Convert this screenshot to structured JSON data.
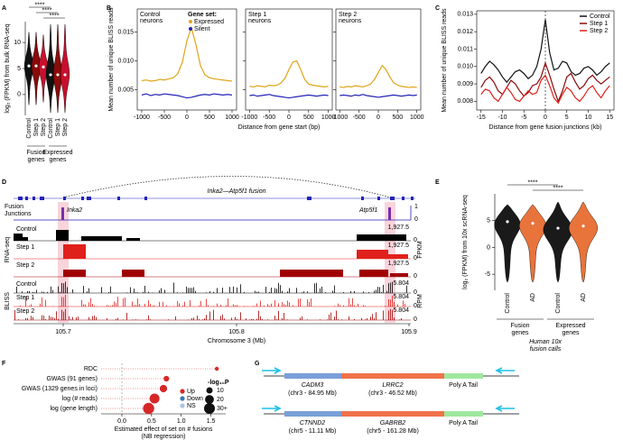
{
  "panel_labels": [
    "A",
    "B",
    "C",
    "D",
    "E",
    "F",
    "G"
  ],
  "chart_data": [
    {
      "type": "violin",
      "ylabel": "log₂ (FPKM) from bulk RNA-seq",
      "categories": [
        "Control",
        "Step 1",
        "Step 2",
        "Control",
        "Step 1",
        "Step 2"
      ],
      "groups": [
        [
          "Fusion",
          "genes"
        ],
        [
          "Expressed",
          "genes"
        ]
      ],
      "medians": [
        5.5,
        5.5,
        5.3,
        3.8,
        3.8,
        3.8
      ],
      "mins": [
        -2,
        -2,
        -1.5,
        -3.5,
        -3.5,
        -3.5
      ],
      "maxs": [
        12,
        12,
        11.5,
        13.5,
        13.5,
        13.5
      ],
      "colors": [
        "#111111",
        "#8b0a0a",
        "#c8102e",
        "#111111",
        "#8b0a0a",
        "#c8102e"
      ],
      "significance": [
        "****",
        "****",
        "****"
      ],
      "ylim": [
        -4,
        14
      ],
      "yticks": [
        0,
        5,
        10
      ]
    },
    {
      "type": "line",
      "facets": [
        [
          "Control",
          "neurons"
        ],
        [
          "Step 1",
          "neurons"
        ],
        [
          "Step 2",
          "neurons"
        ]
      ],
      "legend_title": "Gene set:",
      "xlabel": "Distance from gene start (bp)",
      "ylabel": "Mean number of unique BLISS reads",
      "x": [
        -1000,
        -900,
        -800,
        -700,
        -600,
        -500,
        -400,
        -300,
        -200,
        -100,
        0,
        100,
        200,
        300,
        400,
        500,
        600,
        700,
        800,
        900,
        1000
      ],
      "series": [
        {
          "name": "Expressed",
          "color": "#e0a418",
          "values": [
            [
              0.0066,
              0.0067,
              0.0065,
              0.0066,
              0.0068,
              0.0067,
              0.0069,
              0.0071,
              0.0078,
              0.0098,
              0.0135,
              0.0158,
              0.0128,
              0.0092,
              0.0076,
              0.0071,
              0.0069,
              0.0068,
              0.0067,
              0.0066,
              0.0065
            ],
            [
              0.0056,
              0.0055,
              0.0057,
              0.0056,
              0.0055,
              0.0058,
              0.0057,
              0.0058,
              0.0062,
              0.007,
              0.0085,
              0.0098,
              0.01,
              0.0085,
              0.0068,
              0.006,
              0.0058,
              0.0057,
              0.0056,
              0.0055,
              0.0056
            ],
            [
              0.0055,
              0.0054,
              0.0056,
              0.0055,
              0.0057,
              0.0056,
              0.0055,
              0.0057,
              0.006,
              0.0068,
              0.008,
              0.0092,
              0.0085,
              0.0072,
              0.0062,
              0.0058,
              0.0056,
              0.0055,
              0.0054,
              0.0055,
              0.0054
            ]
          ]
        },
        {
          "name": "Silent",
          "color": "#2323b8",
          "values": [
            [
              0.0041,
              0.0043,
              0.004,
              0.0042,
              0.0041,
              0.0043,
              0.0042,
              0.0041,
              0.004,
              0.0038,
              0.0036,
              0.0037,
              0.0039,
              0.0041,
              0.0042,
              0.0041,
              0.0043,
              0.0042,
              0.0041,
              0.0042,
              0.0041
            ],
            [
              0.004,
              0.0041,
              0.0039,
              0.004,
              0.0041,
              0.0042,
              0.004,
              0.0039,
              0.0038,
              0.0037,
              0.0036,
              0.0037,
              0.0038,
              0.0039,
              0.004,
              0.0041,
              0.004,
              0.0039,
              0.004,
              0.0041,
              0.004
            ],
            [
              0.004,
              0.0041,
              0.004,
              0.0039,
              0.0041,
              0.004,
              0.0042,
              0.004,
              0.0039,
              0.0038,
              0.0037,
              0.0038,
              0.0039,
              0.004,
              0.0041,
              0.004,
              0.0039,
              0.004,
              0.0041,
              0.004,
              0.0041
            ]
          ]
        }
      ],
      "xlim": [
        -1100,
        1100
      ],
      "xticks": [
        -1000,
        -500,
        0,
        500,
        1000
      ],
      "ylim": [
        0.0015,
        0.019
      ],
      "yticks": [
        0.005,
        {
          "value": 0.01,
          "label": "0.010"
        },
        0.015
      ]
    },
    {
      "type": "line",
      "xlabel": "Distance from gene fusion junctions (kb)",
      "ylabel": "Mean number of unique BLISS reads",
      "x": [
        -15,
        -14,
        -13,
        -12,
        -11,
        -10,
        -9,
        -8,
        -7,
        -6,
        -5,
        -4,
        -3,
        -2,
        -1,
        0,
        1,
        2,
        3,
        4,
        5,
        6,
        7,
        8,
        9,
        10,
        11,
        12,
        13,
        14,
        15
      ],
      "series": [
        {
          "name": "Control",
          "color": "#111111",
          "values": [
            0.0096,
            0.01,
            0.0103,
            0.0101,
            0.0098,
            0.0094,
            0.0091,
            0.0094,
            0.0097,
            0.0098,
            0.0096,
            0.0093,
            0.0095,
            0.01,
            0.011,
            0.0127,
            0.0108,
            0.0098,
            0.0099,
            0.0103,
            0.0102,
            0.0097,
            0.0095,
            0.0096,
            0.0099,
            0.01,
            0.0098,
            0.0095,
            0.0097,
            0.01,
            0.0102
          ]
        },
        {
          "name": "Step 1",
          "color": "#8b0a0a",
          "values": [
            0.0088,
            0.0092,
            0.0094,
            0.0091,
            0.0086,
            0.0084,
            0.0088,
            0.0092,
            0.009,
            0.0086,
            0.0083,
            0.0085,
            0.0089,
            0.009,
            0.0094,
            0.0102,
            0.0095,
            0.0087,
            0.008,
            0.0086,
            0.0094,
            0.0096,
            0.0091,
            0.0087,
            0.0089,
            0.0093,
            0.0095,
            0.0092,
            0.009,
            0.0092,
            0.0094
          ]
        },
        {
          "name": "Step 2",
          "color": "#e0201b",
          "values": [
            0.0084,
            0.0087,
            0.0086,
            0.0082,
            0.008,
            0.0084,
            0.0088,
            0.0085,
            0.0081,
            0.008,
            0.0083,
            0.0086,
            0.0084,
            0.0085,
            0.0092,
            0.0095,
            0.0089,
            0.0082,
            0.0079,
            0.0084,
            0.0088,
            0.0086,
            0.0082,
            0.008,
            0.0083,
            0.0087,
            0.0089,
            0.0085,
            0.0082,
            0.0086,
            0.0089
          ]
        }
      ],
      "xlim": [
        -16,
        16
      ],
      "xticks": [
        -15,
        -10,
        -5,
        0,
        5,
        10,
        15
      ],
      "ylim": [
        0.0075,
        0.0132
      ],
      "yticks": [
        0.008,
        0.009,
        {
          "value": 0.01,
          "label": "0.010"
        },
        0.011,
        0.012,
        0.013
      ],
      "legend": "top-right"
    },
    {
      "type": "violin",
      "ylabel": "log₂ (FPKM) from 10x scRNA-seq",
      "categories": [
        "Control",
        "AD",
        "Control",
        "AD"
      ],
      "groups": [
        [
          "Fusion",
          "genes"
        ],
        [
          "Expressed",
          "genes"
        ]
      ],
      "medians": [
        4.8,
        4.5,
        3.6,
        4.0
      ],
      "mins": [
        -6.5,
        -6.5,
        -6.5,
        -6.5
      ],
      "maxs": [
        8,
        8,
        8.5,
        8.5
      ],
      "colors": [
        "#1a1a1a",
        "#e8743b",
        "#1a1a1a",
        "#e8743b"
      ],
      "significance": [
        "****",
        "****"
      ],
      "caption": [
        "Human 10x",
        "fusion calls"
      ],
      "ylim": [
        -8,
        10
      ],
      "yticks": [
        -5,
        0,
        5
      ]
    },
    {
      "type": "dot",
      "categories": [
        "RDC",
        "GWAS (91 genes)",
        "GWAS (1329 genes in loci)",
        "log (# reads)",
        "log (gene length)"
      ],
      "values": [
        1.6,
        0.75,
        0.7,
        0.55,
        0.45
      ],
      "sizes": [
        4,
        8,
        14,
        25,
        32
      ],
      "color": "#d62728",
      "xlabel": [
        "Estimated effect of set on # fusions",
        "(NB regression)"
      ],
      "xlim": [
        -0.35,
        1.75
      ],
      "xticks": [
        {
          "value": 0,
          "label": "0.0"
        },
        0.5,
        {
          "value": 1,
          "label": "1.0"
        },
        1.5
      ],
      "direction_legend": [
        {
          "label": "Up",
          "color": "#d62728"
        },
        {
          "label": "Down",
          "color": "#3a78b5"
        },
        {
          "label": "NS",
          "color": "#aac4e0"
        }
      ],
      "size_legend": {
        "title": "-log₁₀P",
        "values": [
          10,
          20,
          {
            "value": 30,
            "label": "30+"
          }
        ]
      }
    }
  ],
  "genome_browser": {
    "title": "Inka2—Atp5f1 fusion",
    "junction_label": [
      "Fusion",
      "Junctions"
    ],
    "genes": [
      "Inka2",
      "Atp5f1"
    ],
    "junction_scale": [
      "1",
      "0"
    ],
    "rna_seq": {
      "label": "RNA-seq",
      "unit": "FPKM",
      "tracks": [
        "Control",
        "Step 1",
        "Step 2"
      ],
      "max": "1,927.5",
      "min": "0"
    },
    "bliss": {
      "label": "BLISS",
      "unit": "RPM",
      "tracks": [
        "Control",
        "Step 1",
        "Step 2"
      ],
      "max": "5.804",
      "min": "0"
    },
    "axis": {
      "ticks": [
        "105.7",
        "105.8",
        "105.9"
      ],
      "label": "Chromosome 3 (Mb)"
    }
  },
  "fusion_constructs": [
    {
      "genes": [
        {
          "name": "CADM3",
          "locus": "(chr3 - 84.95 Mb)"
        },
        {
          "name": "LRRC2",
          "locus": "(chr3 - 46.52 Mb)"
        }
      ],
      "tail": "Poly A Tail"
    },
    {
      "genes": [
        {
          "name": "CTNND2",
          "locus": "(chr5 - 11.11 Mb)"
        },
        {
          "name": "GABRB2",
          "locus": "(chr5 - 161.28 Mb)"
        }
      ],
      "tail": "Poly A Tail"
    }
  ]
}
